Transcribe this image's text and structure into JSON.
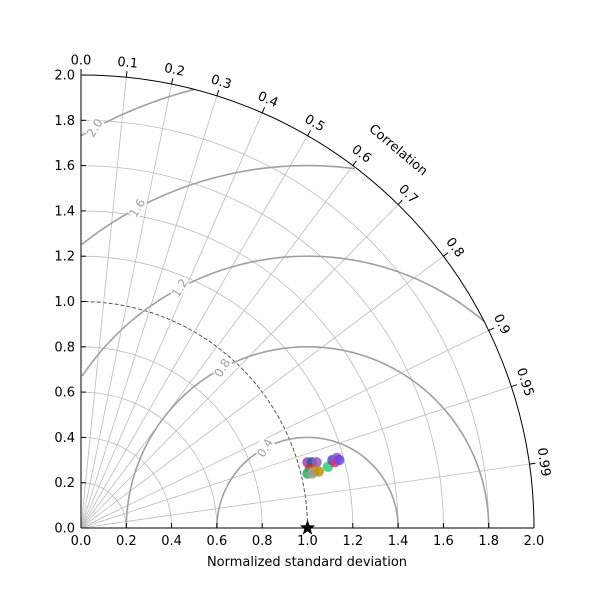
{
  "chart_data": {
    "type": "scatter",
    "subtype": "taylor-diagram",
    "title": "",
    "xlabel": "Normalized standard deviation",
    "corr_label": "Correlation",
    "std_range": [
      0,
      2.0
    ],
    "grid": true,
    "std_ticks": [
      "0.0",
      "0.2",
      "0.4",
      "0.6",
      "0.8",
      "1.0",
      "1.2",
      "1.4",
      "1.6",
      "1.8",
      "2.0"
    ],
    "corr_ticks": [
      {
        "value": 0.0,
        "label": "0.0"
      },
      {
        "value": 0.1,
        "label": "0.1"
      },
      {
        "value": 0.2,
        "label": "0.2"
      },
      {
        "value": 0.3,
        "label": "0.3"
      },
      {
        "value": 0.4,
        "label": "0.4"
      },
      {
        "value": 0.5,
        "label": "0.5"
      },
      {
        "value": 0.6,
        "label": "0.6"
      },
      {
        "value": 0.7,
        "label": "0.7"
      },
      {
        "value": 0.8,
        "label": "0.8"
      },
      {
        "value": 0.9,
        "label": "0.9"
      },
      {
        "value": 0.95,
        "label": "0.95"
      },
      {
        "value": 0.99,
        "label": "0.99"
      }
    ],
    "rms_contours": [
      {
        "value": 0.4,
        "label": "0.4"
      },
      {
        "value": 0.8,
        "label": "0.8"
      },
      {
        "value": 1.2,
        "label": "1.2"
      },
      {
        "value": 1.6,
        "label": "1.6"
      },
      {
        "value": 2.0,
        "label": "2.0"
      }
    ],
    "reference": {
      "std": 1.0,
      "marker": "star"
    },
    "points": [
      {
        "x": 1.0,
        "y": 0.29,
        "color": "#8e44ad"
      },
      {
        "x": 1.02,
        "y": 0.29,
        "color": "#2c5aa0"
      },
      {
        "x": 1.04,
        "y": 0.29,
        "color": "#9b59b6"
      },
      {
        "x": 1.01,
        "y": 0.26,
        "color": "#c0392b"
      },
      {
        "x": 1.03,
        "y": 0.25,
        "color": "#e67e22"
      },
      {
        "x": 1.0,
        "y": 0.24,
        "color": "#27ae60"
      },
      {
        "x": 1.02,
        "y": 0.24,
        "color": "#a0a0a0"
      },
      {
        "x": 1.05,
        "y": 0.25,
        "color": "#b7950b"
      },
      {
        "x": 1.09,
        "y": 0.27,
        "color": "#2ecc71"
      },
      {
        "x": 1.11,
        "y": 0.3,
        "color": "#3b5bdb"
      },
      {
        "x": 1.12,
        "y": 0.29,
        "color": "#d6336c"
      },
      {
        "x": 1.13,
        "y": 0.31,
        "color": "#9b59b6"
      },
      {
        "x": 1.14,
        "y": 0.3,
        "color": "#7048e8"
      }
    ],
    "colors": {
      "grid": "#bbbbbb",
      "contour": "#a0a0a0",
      "axis": "#000000"
    }
  }
}
